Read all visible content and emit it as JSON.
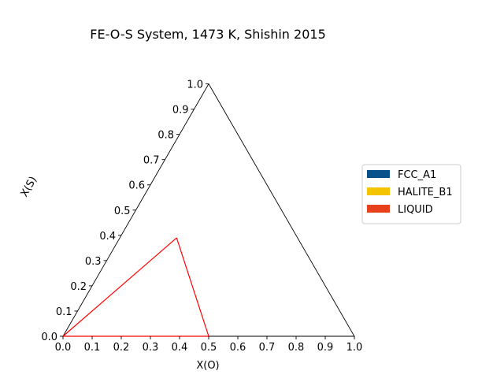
{
  "chart_data": {
    "type": "line",
    "title": "FE-O-S System, 1473 K, Shishin 2015",
    "xlabel": "X(O)",
    "ylabel": "X(S)",
    "xlim": [
      0,
      1
    ],
    "ylim": [
      0,
      1
    ],
    "x_ticks": [
      "0.0",
      "0.1",
      "0.2",
      "0.3",
      "0.4",
      "0.5",
      "0.6",
      "0.7",
      "0.8",
      "0.9",
      "1.0"
    ],
    "y_ticks": [
      "0.0",
      "0.1",
      "0.2",
      "0.3",
      "0.4",
      "0.5",
      "0.6",
      "0.7",
      "0.8",
      "0.9",
      "1.0"
    ],
    "legend_position": "right",
    "legend": [
      {
        "name": "FCC_A1",
        "color": "#08518a"
      },
      {
        "name": "HALITE_B1",
        "color": "#f5c400"
      },
      {
        "name": "LIQUID",
        "color": "#e8401c"
      }
    ],
    "boundary_color": "#000000",
    "series": [
      {
        "line_color": "#ff0000",
        "x": [
          0.0,
          0.5
        ],
        "y": [
          0.0,
          0.0
        ]
      },
      {
        "line_color": "#ff0000",
        "x": [
          0.0,
          0.195
        ],
        "y": [
          0.0,
          0.39
        ]
      },
      {
        "line_color": "#ff0000",
        "x": [
          0.195,
          0.5
        ],
        "y": [
          0.39,
          0.0
        ]
      }
    ]
  }
}
